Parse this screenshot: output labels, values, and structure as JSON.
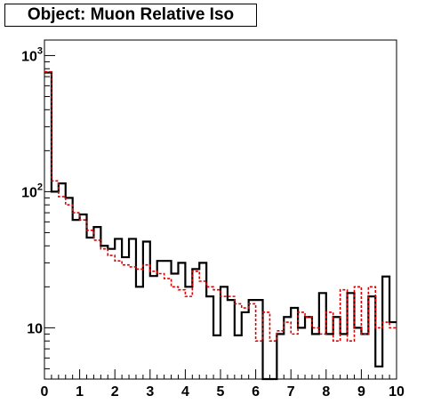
{
  "chart_data": {
    "type": "histogram",
    "title": "Object: Muon Relative Iso",
    "xlabel": "",
    "ylabel": "",
    "xlim": [
      0,
      10
    ],
    "ylim": [
      4.2,
      1300
    ],
    "log_y": true,
    "grid": false,
    "legend": "none",
    "bin_width": 0.2,
    "x_ticks": [
      "0",
      "1",
      "2",
      "3",
      "4",
      "5",
      "6",
      "7",
      "8",
      "9",
      "10"
    ],
    "y_ticks": [
      {
        "base": "10",
        "exp": "3",
        "value": 1000
      },
      {
        "base": "10",
        "exp": "2",
        "value": 100
      },
      {
        "base": "10",
        "exp": "",
        "value": 10
      }
    ],
    "series": [
      {
        "style": "solid",
        "color": "#000000",
        "values": [
          750,
          100,
          115,
          90,
          62,
          68,
          46,
          55,
          40,
          38,
          45,
          33,
          45,
          20,
          43,
          24,
          31,
          31,
          25,
          30,
          20,
          27,
          30,
          17,
          8.8,
          20,
          16,
          8.8,
          13,
          16,
          16,
          4.2,
          4.2,
          9,
          12,
          14,
          10,
          12,
          9,
          18,
          9,
          12,
          9,
          18,
          10,
          9,
          17,
          5.2,
          23.8,
          11
        ]
      },
      {
        "style": "dashed",
        "color": "#e00000",
        "values": [
          760,
          120,
          92,
          80,
          70,
          62,
          52,
          44,
          38,
          34,
          31,
          29,
          28,
          27,
          29,
          26,
          25,
          23,
          20,
          19,
          17,
          26,
          22,
          20,
          19,
          17,
          17,
          15,
          14,
          15,
          8,
          13,
          8,
          9.5,
          11,
          9,
          13,
          12,
          10,
          9,
          13,
          8,
          19,
          8,
          20,
          9,
          20,
          10,
          11,
          10
        ]
      }
    ]
  }
}
